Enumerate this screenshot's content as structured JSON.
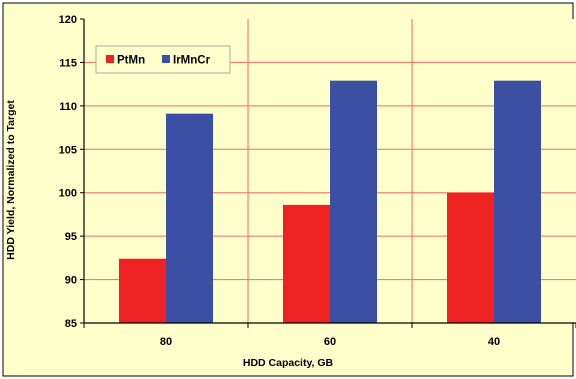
{
  "chart_data": {
    "type": "bar",
    "categories": [
      "80",
      "60",
      "40"
    ],
    "series": [
      {
        "name": "PtMn",
        "values": [
          92.4,
          98.6,
          100.0
        ],
        "color": "#ee2222"
      },
      {
        "name": "IrMnCr",
        "values": [
          109.1,
          112.9,
          112.9
        ],
        "color": "#3b50a3"
      }
    ],
    "xlabel": "HDD Capacity, GB",
    "ylabel": "HDD Yield, Normalized to Target",
    "ylim": [
      85,
      120
    ],
    "yticks": [
      "85",
      "90",
      "95",
      "100",
      "105",
      "110",
      "115",
      "120"
    ],
    "grid": true,
    "legend_position": "top-left",
    "background_color": "#ffffcc",
    "grid_color": "#ff6666"
  }
}
